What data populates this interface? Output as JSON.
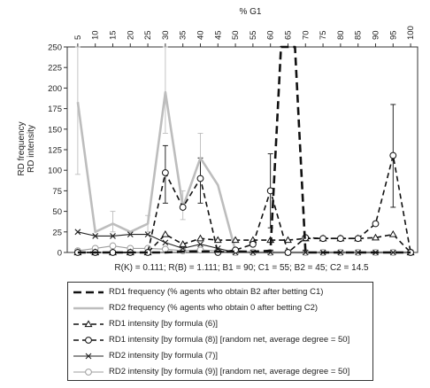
{
  "chart_data": {
    "type": "line",
    "x_title": "% G1",
    "y_title": [
      "RD frequency",
      "RD intensity"
    ],
    "x_ticks": [
      "5",
      "10",
      "15",
      "20",
      "25",
      "30",
      "35",
      "40",
      "45",
      "50",
      "55",
      "60",
      "65",
      "70",
      "75",
      "80",
      "85",
      "90",
      "95",
      "100"
    ],
    "y_ticks": [
      "0",
      "25",
      "50",
      "75",
      "100",
      "125",
      "150",
      "175",
      "200",
      "225",
      "250"
    ],
    "ylim": [
      0,
      250
    ],
    "parameters_text": "R(K) = 0.111; R(B) = 1.111; B1 = 90; C1 = 55; B2 = 45; C2 = 14.5",
    "series": [
      {
        "name": "RD1 frequency (% agents who obtain B2 after betting C1)",
        "color": "#111111",
        "style": "dashed-thick",
        "marker": "none",
        "x": [
          5,
          10,
          15,
          20,
          25,
          30,
          35,
          40,
          45,
          50,
          55,
          60,
          63,
          65,
          67,
          70,
          75,
          80,
          85,
          90,
          95,
          100
        ],
        "y": [
          0,
          0,
          0,
          0,
          0,
          0,
          1,
          1,
          1,
          1,
          1,
          2,
          250,
          250,
          250,
          0,
          0,
          0,
          0,
          0,
          0,
          0
        ]
      },
      {
        "name": "RD2 frequency (% agents who obtain 0 after betting C2)",
        "color": "#bdbdbd",
        "style": "solid-thick",
        "marker": "none",
        "x": [
          5,
          10,
          15,
          20,
          25,
          30,
          35,
          40,
          45,
          50,
          55,
          60,
          65,
          70,
          75,
          80,
          85,
          90,
          95,
          100
        ],
        "y": [
          183,
          25,
          35,
          25,
          35,
          195,
          55,
          115,
          82,
          2,
          0,
          0,
          0,
          0,
          0,
          0,
          0,
          0,
          0,
          0
        ]
      },
      {
        "name": "RD1 intensity [by formula (6)]",
        "color": "#111111",
        "style": "dashed",
        "marker": "triangle",
        "x": [
          5,
          10,
          15,
          20,
          25,
          30,
          35,
          40,
          45,
          50,
          55,
          60,
          65,
          70,
          75,
          80,
          85,
          90,
          95,
          100
        ],
        "y": [
          0,
          0,
          0,
          0,
          0,
          22,
          10,
          17,
          15,
          15,
          15,
          15,
          15,
          17,
          17,
          17,
          17,
          18,
          22,
          0
        ]
      },
      {
        "name": "RD1 intensity [by formula (8)] [random net, average degree = 50]",
        "color": "#111111",
        "style": "dashed",
        "marker": "circle",
        "x": [
          5,
          10,
          15,
          20,
          25,
          30,
          35,
          40,
          45,
          50,
          55,
          60,
          65,
          70,
          75,
          80,
          85,
          90,
          95,
          100
        ],
        "y": [
          0,
          0,
          0,
          0,
          0,
          97,
          55,
          90,
          0,
          3,
          10,
          75,
          0,
          18,
          17,
          17,
          17,
          35,
          118,
          0
        ]
      },
      {
        "name": "RD2 intensity [by formula (7)]",
        "color": "#222222",
        "style": "solid-thin",
        "marker": "x",
        "x": [
          5,
          10,
          15,
          20,
          25,
          30,
          35,
          40,
          45,
          50,
          55,
          60,
          65,
          70,
          75,
          80,
          85,
          90,
          95,
          100
        ],
        "y": [
          25,
          20,
          20,
          22,
          22,
          12,
          5,
          10,
          5,
          0,
          0,
          0,
          0,
          0,
          0,
          0,
          0,
          0,
          0,
          0
        ]
      },
      {
        "name": "RD2 intensity [by formula (9)] [random net, average degree = 50]",
        "color": "#9e9e9e",
        "style": "solid-thin",
        "marker": "circle",
        "x": [
          5,
          10,
          15,
          20,
          25,
          30,
          35,
          40,
          45,
          50,
          55,
          60,
          65,
          70,
          75,
          80,
          85,
          90,
          95,
          100
        ],
        "y": [
          2,
          5,
          8,
          5,
          5,
          4,
          2,
          3,
          2,
          0,
          0,
          0,
          0,
          0,
          0,
          0,
          0,
          0,
          0,
          0
        ]
      }
    ],
    "error_bars": [
      {
        "series": 1,
        "x": 5,
        "low": 95,
        "high": 250
      },
      {
        "series": 1,
        "x": 30,
        "low": 145,
        "high": 250
      },
      {
        "series": 3,
        "x": 30,
        "low": 60,
        "high": 130
      },
      {
        "series": 1,
        "x": 35,
        "low": 40,
        "high": 75
      },
      {
        "series": 1,
        "x": 40,
        "low": 90,
        "high": 145
      },
      {
        "series": 3,
        "x": 40,
        "low": 60,
        "high": 115
      },
      {
        "series": 3,
        "x": 60,
        "low": 30,
        "high": 120
      },
      {
        "series": 3,
        "x": 95,
        "low": 55,
        "high": 180
      },
      {
        "series": 1,
        "x": 15,
        "low": 25,
        "high": 50
      },
      {
        "series": 1,
        "x": 25,
        "low": 25,
        "high": 45
      }
    ]
  }
}
